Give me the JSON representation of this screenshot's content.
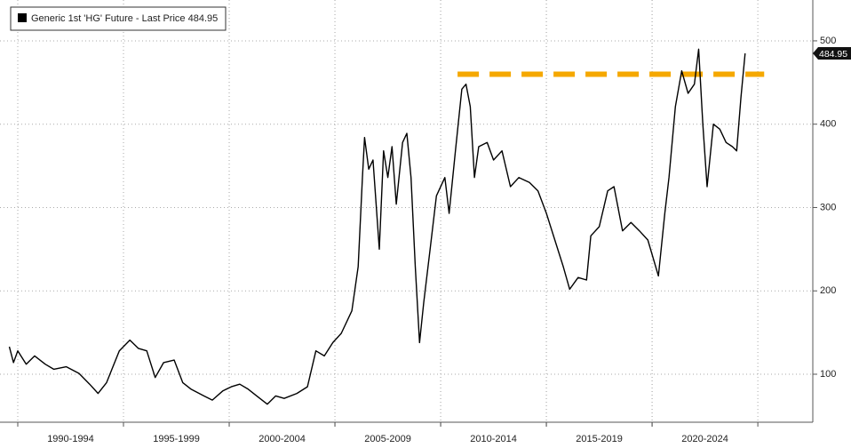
{
  "chart_data": {
    "type": "line",
    "legend": "Generic 1st 'HG' Future - Last Price 484.95",
    "legend_corner": "top-left",
    "series": [
      {
        "color": "#000000",
        "x": [
          1989.6,
          1989.8,
          1990.0,
          1990.4,
          1990.8,
          1991.3,
          1991.7,
          1992.3,
          1992.9,
          1993.4,
          1993.8,
          1994.2,
          1994.8,
          1995.3,
          1995.7,
          1996.1,
          1996.5,
          1996.9,
          1997.4,
          1997.8,
          1998.2,
          1998.8,
          1999.2,
          1999.7,
          2000.1,
          2000.5,
          2000.9,
          2001.3,
          2001.8,
          2002.2,
          2002.6,
          2003.2,
          2003.7,
          2004.1,
          2004.5,
          2004.9,
          2005.3,
          2005.8,
          2006.1,
          2006.3,
          2006.4,
          2006.6,
          2006.8,
          2007.1,
          2007.3,
          2007.5,
          2007.7,
          2007.9,
          2008.2,
          2008.4,
          2008.6,
          2008.8,
          2009.0,
          2009.2,
          2009.5,
          2009.8,
          2010.2,
          2010.4,
          2010.7,
          2011.0,
          2011.2,
          2011.4,
          2011.6,
          2011.8,
          2012.2,
          2012.5,
          2012.9,
          2013.3,
          2013.7,
          2014.2,
          2014.6,
          2015.0,
          2015.4,
          2015.8,
          2016.1,
          2016.5,
          2016.9,
          2017.1,
          2017.5,
          2017.9,
          2018.2,
          2018.6,
          2019.0,
          2019.4,
          2019.8,
          2020.3,
          2020.6,
          2020.8,
          2021.1,
          2021.4,
          2021.7,
          2022.0,
          2022.2,
          2022.4,
          2022.6,
          2022.9,
          2023.2,
          2023.5,
          2023.8,
          2024.0,
          2024.2,
          2024.4
        ],
        "values": [
          133,
          114,
          128,
          112,
          122,
          112,
          106,
          109,
          101,
          88,
          77,
          90,
          128,
          141,
          131,
          128,
          96,
          114,
          117,
          90,
          82,
          74,
          69,
          80,
          85,
          88,
          82,
          74,
          64,
          74,
          71,
          77,
          85,
          128,
          122,
          138,
          149,
          176,
          229,
          336,
          384,
          346,
          357,
          250,
          368,
          336,
          373,
          304,
          378,
          389,
          336,
          229,
          138,
          186,
          250,
          314,
          336,
          293,
          368,
          442,
          448,
          421,
          336,
          373,
          378,
          357,
          368,
          325,
          336,
          330,
          320,
          293,
          261,
          229,
          202,
          216,
          213,
          266,
          277,
          320,
          325,
          272,
          282,
          272,
          261,
          218,
          293,
          336,
          421,
          464,
          437,
          448,
          490,
          400,
          325,
          400,
          394,
          378,
          373,
          368,
          432,
          484.95
        ]
      }
    ],
    "last_price": 484.95,
    "annotations": [
      {
        "type": "hline",
        "value": 460,
        "from": 2010.8,
        "to": 2025.3,
        "color": "#f5a800"
      }
    ],
    "xlim": [
      1989.16,
      2027.6
    ],
    "x_bands": [
      {
        "start": 1990,
        "end": 1995,
        "label": "1990-1994"
      },
      {
        "start": 1995,
        "end": 2000,
        "label": "1995-1999"
      },
      {
        "start": 2000,
        "end": 2005,
        "label": "2000-2004"
      },
      {
        "start": 2005,
        "end": 2010,
        "label": "2005-2009"
      },
      {
        "start": 2010,
        "end": 2015,
        "label": "2010-2014"
      },
      {
        "start": 2015,
        "end": 2020,
        "label": "2015-2019"
      },
      {
        "start": 2020,
        "end": 2025,
        "label": "2020-2024"
      }
    ],
    "ylim": [
      42.4,
      549
    ],
    "yticks": [
      100,
      200,
      300,
      400,
      500
    ],
    "grid": true
  }
}
